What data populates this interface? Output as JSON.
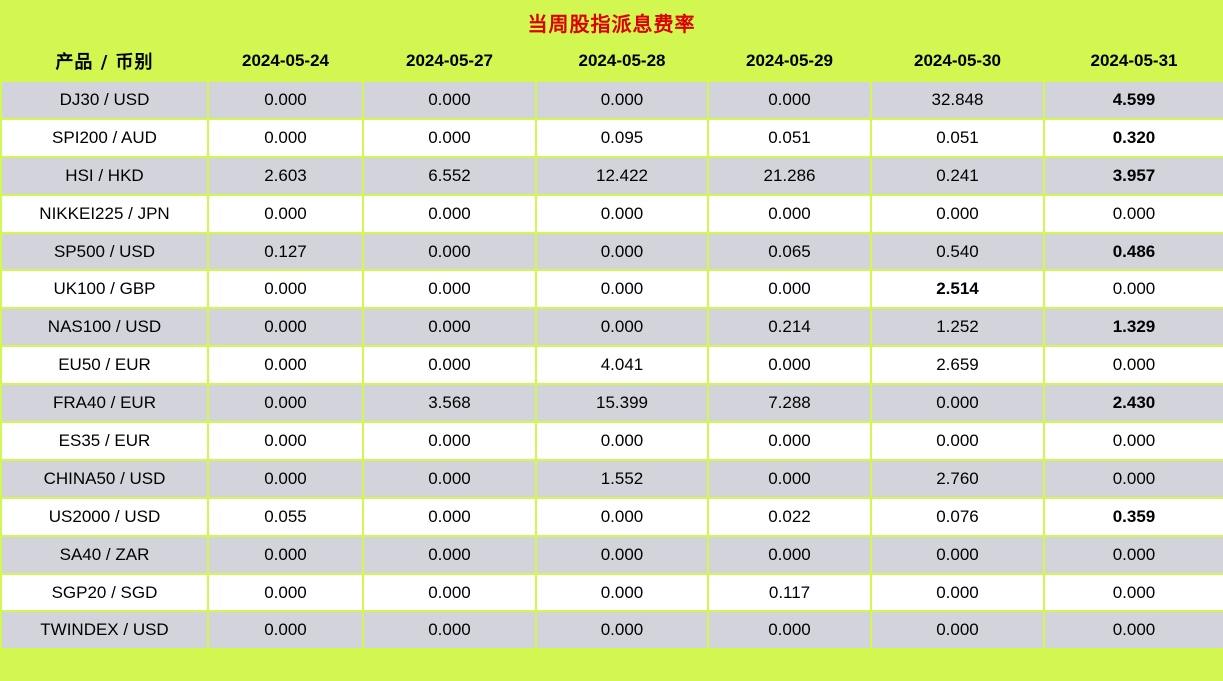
{
  "title": "当周股指派息费率",
  "colors": {
    "background_green": "#d1f750",
    "stripe_row": "#d2d3db",
    "plain_row": "#ffffff",
    "title_red": "#dd0000",
    "text": "#000000"
  },
  "table": {
    "product_header": "产品 / 币别",
    "date_headers": [
      "2024-05-24",
      "2024-05-27",
      "2024-05-28",
      "2024-05-29",
      "2024-05-30",
      "2024-05-31"
    ],
    "rows": [
      {
        "product": "DJ30 / USD",
        "values": [
          "0.000",
          "0.000",
          "0.000",
          "0.000",
          "32.848",
          "4.599"
        ],
        "bold_cols": [
          5
        ]
      },
      {
        "product": "SPI200 / AUD",
        "values": [
          "0.000",
          "0.000",
          "0.095",
          "0.051",
          "0.051",
          "0.320"
        ],
        "bold_cols": [
          5
        ]
      },
      {
        "product": "HSI / HKD",
        "values": [
          "2.603",
          "6.552",
          "12.422",
          "21.286",
          "0.241",
          "3.957"
        ],
        "bold_cols": [
          5
        ]
      },
      {
        "product": "NIKKEI225 / JPN",
        "values": [
          "0.000",
          "0.000",
          "0.000",
          "0.000",
          "0.000",
          "0.000"
        ],
        "bold_cols": []
      },
      {
        "product": "SP500 / USD",
        "values": [
          "0.127",
          "0.000",
          "0.000",
          "0.065",
          "0.540",
          "0.486"
        ],
        "bold_cols": [
          5
        ]
      },
      {
        "product": "UK100 / GBP",
        "values": [
          "0.000",
          "0.000",
          "0.000",
          "0.000",
          "2.514",
          "0.000"
        ],
        "bold_cols": [
          4
        ]
      },
      {
        "product": "NAS100 / USD",
        "values": [
          "0.000",
          "0.000",
          "0.000",
          "0.214",
          "1.252",
          "1.329"
        ],
        "bold_cols": [
          5
        ]
      },
      {
        "product": "EU50 / EUR",
        "values": [
          "0.000",
          "0.000",
          "4.041",
          "0.000",
          "2.659",
          "0.000"
        ],
        "bold_cols": []
      },
      {
        "product": "FRA40 / EUR",
        "values": [
          "0.000",
          "3.568",
          "15.399",
          "7.288",
          "0.000",
          "2.430"
        ],
        "bold_cols": [
          5
        ]
      },
      {
        "product": "ES35 / EUR",
        "values": [
          "0.000",
          "0.000",
          "0.000",
          "0.000",
          "0.000",
          "0.000"
        ],
        "bold_cols": []
      },
      {
        "product": "CHINA50 / USD",
        "values": [
          "0.000",
          "0.000",
          "1.552",
          "0.000",
          "2.760",
          "0.000"
        ],
        "bold_cols": []
      },
      {
        "product": "US2000 / USD",
        "values": [
          "0.055",
          "0.000",
          "0.000",
          "0.022",
          "0.076",
          "0.359"
        ],
        "bold_cols": [
          5
        ]
      },
      {
        "product": "SA40 / ZAR",
        "values": [
          "0.000",
          "0.000",
          "0.000",
          "0.000",
          "0.000",
          "0.000"
        ],
        "bold_cols": []
      },
      {
        "product": "SGP20 / SGD",
        "values": [
          "0.000",
          "0.000",
          "0.000",
          "0.117",
          "0.000",
          "0.000"
        ],
        "bold_cols": []
      },
      {
        "product": "TWINDEX / USD",
        "values": [
          "0.000",
          "0.000",
          "0.000",
          "0.000",
          "0.000",
          "0.000"
        ],
        "bold_cols": []
      }
    ]
  },
  "chart_data": {
    "type": "table",
    "title": "当周股指派息费率",
    "categories": [
      "2024-05-24",
      "2024-05-27",
      "2024-05-28",
      "2024-05-29",
      "2024-05-30",
      "2024-05-31"
    ],
    "series": [
      {
        "name": "DJ30 / USD",
        "values": [
          0.0,
          0.0,
          0.0,
          0.0,
          32.848,
          4.599
        ]
      },
      {
        "name": "SPI200 / AUD",
        "values": [
          0.0,
          0.0,
          0.095,
          0.051,
          0.051,
          0.32
        ]
      },
      {
        "name": "HSI / HKD",
        "values": [
          2.603,
          6.552,
          12.422,
          21.286,
          0.241,
          3.957
        ]
      },
      {
        "name": "NIKKEI225 / JPN",
        "values": [
          0.0,
          0.0,
          0.0,
          0.0,
          0.0,
          0.0
        ]
      },
      {
        "name": "SP500 / USD",
        "values": [
          0.127,
          0.0,
          0.0,
          0.065,
          0.54,
          0.486
        ]
      },
      {
        "name": "UK100 / GBP",
        "values": [
          0.0,
          0.0,
          0.0,
          0.0,
          2.514,
          0.0
        ]
      },
      {
        "name": "NAS100 / USD",
        "values": [
          0.0,
          0.0,
          0.0,
          0.214,
          1.252,
          1.329
        ]
      },
      {
        "name": "EU50 / EUR",
        "values": [
          0.0,
          0.0,
          4.041,
          0.0,
          2.659,
          0.0
        ]
      },
      {
        "name": "FRA40 / EUR",
        "values": [
          0.0,
          3.568,
          15.399,
          7.288,
          0.0,
          2.43
        ]
      },
      {
        "name": "ES35 / EUR",
        "values": [
          0.0,
          0.0,
          0.0,
          0.0,
          0.0,
          0.0
        ]
      },
      {
        "name": "CHINA50 / USD",
        "values": [
          0.0,
          0.0,
          1.552,
          0.0,
          2.76,
          0.0
        ]
      },
      {
        "name": "US2000 / USD",
        "values": [
          0.055,
          0.0,
          0.0,
          0.022,
          0.076,
          0.359
        ]
      },
      {
        "name": "SA40 / ZAR",
        "values": [
          0.0,
          0.0,
          0.0,
          0.0,
          0.0,
          0.0
        ]
      },
      {
        "name": "SGP20 / SGD",
        "values": [
          0.0,
          0.0,
          0.0,
          0.117,
          0.0,
          0.0
        ]
      },
      {
        "name": "TWINDEX / USD",
        "values": [
          0.0,
          0.0,
          0.0,
          0.0,
          0.0,
          0.0
        ]
      }
    ]
  }
}
